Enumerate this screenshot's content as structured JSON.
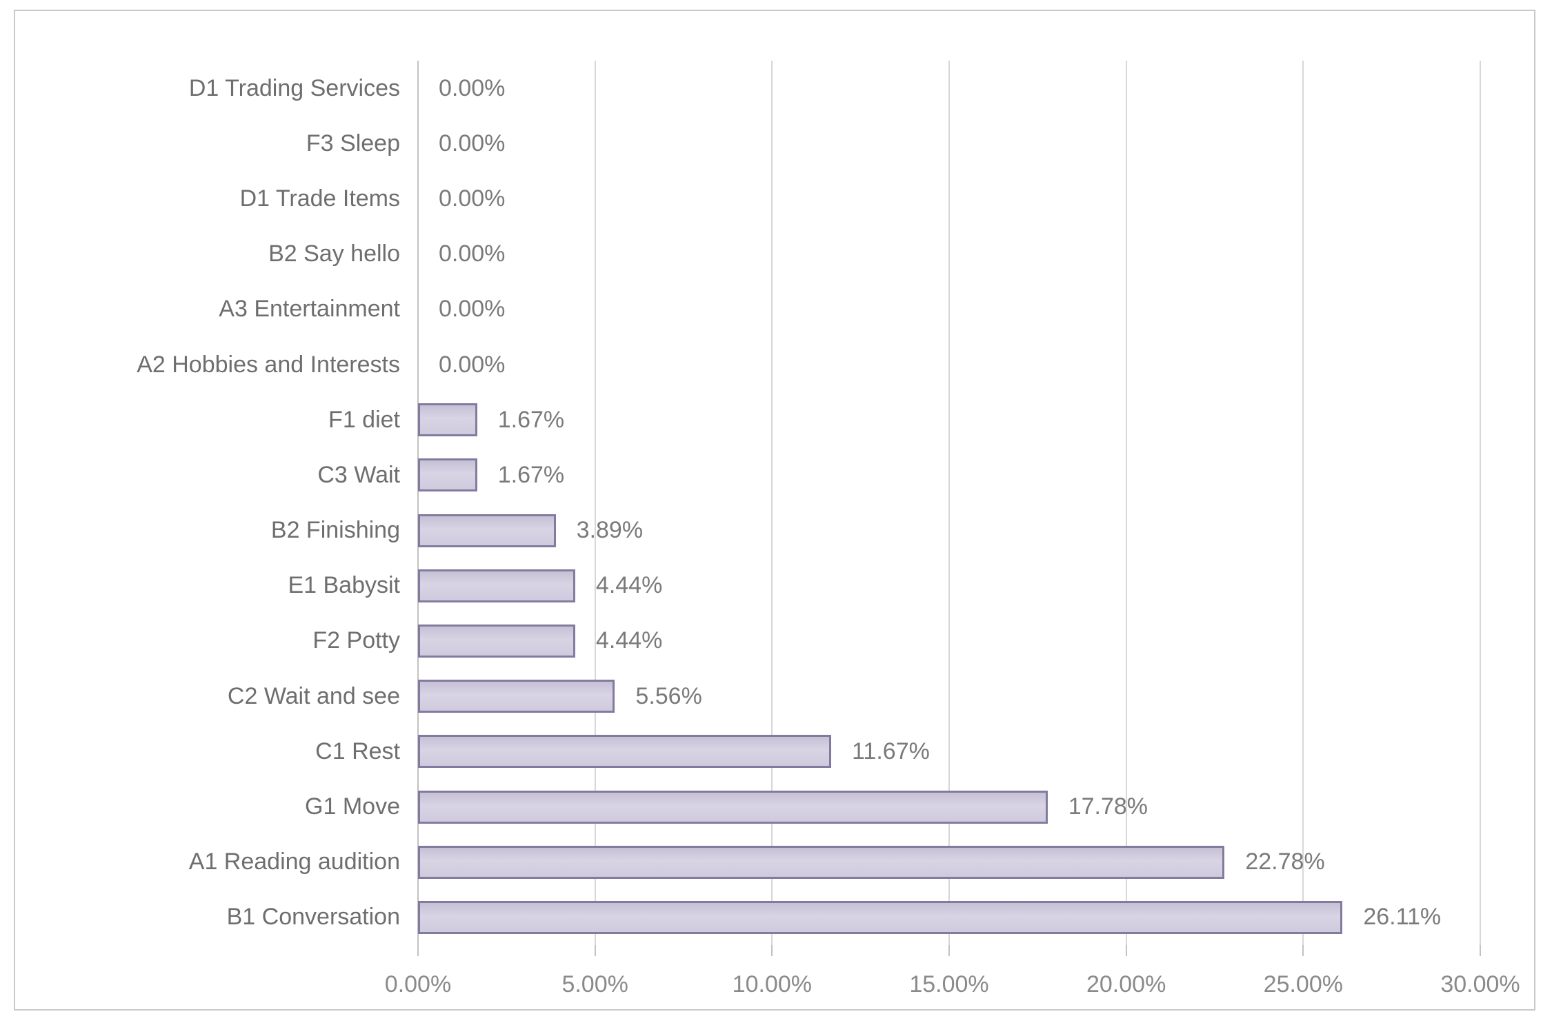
{
  "chart_data": {
    "type": "bar",
    "orientation": "horizontal",
    "title": "",
    "categories": [
      "D1 Trading Services",
      "F3 Sleep",
      "D1 Trade Items",
      "B2 Say hello",
      "A3 Entertainment",
      "A2 Hobbies and Interests",
      "F1 diet",
      "C3 Wait",
      "B2 Finishing",
      "E1 Babysit",
      "F2 Potty",
      "C2 Wait and see",
      "C1 Rest",
      "G1 Move",
      "A1 Reading audition",
      "B1 Conversation"
    ],
    "values": [
      0,
      0,
      0,
      0,
      0,
      0,
      1.67,
      1.67,
      3.89,
      4.44,
      4.44,
      5.56,
      11.67,
      17.78,
      22.78,
      26.11
    ],
    "value_labels": [
      "0.00%",
      "0.00%",
      "0.00%",
      "0.00%",
      "0.00%",
      "0.00%",
      "1.67%",
      "1.67%",
      "3.89%",
      "4.44%",
      "4.44%",
      "5.56%",
      "11.67%",
      "17.78%",
      "22.78%",
      "26.11%"
    ],
    "x_ticks": [
      0,
      5,
      10,
      15,
      20,
      25,
      30
    ],
    "x_tick_labels": [
      "0.00%",
      "5.00%",
      "10.00%",
      "15.00%",
      "20.00%",
      "25.00%",
      "30.00%"
    ],
    "xlim": [
      0,
      30
    ],
    "xlabel": "",
    "ylabel": "",
    "grid": "vertical",
    "legend": "none"
  },
  "colors": {
    "bar_fill": "#cdc8dc",
    "bar_fill_light": "#d8d4e4",
    "bar_border": "#837b9f",
    "gridline": "#d7d7d7",
    "axis_line": "#c2c2c2",
    "category_text": "#6e6e6e",
    "value_text": "#7a7a7a",
    "tick_text": "#8a8a8a",
    "frame_border": "#c9c9c9",
    "background": "#ffffff"
  }
}
